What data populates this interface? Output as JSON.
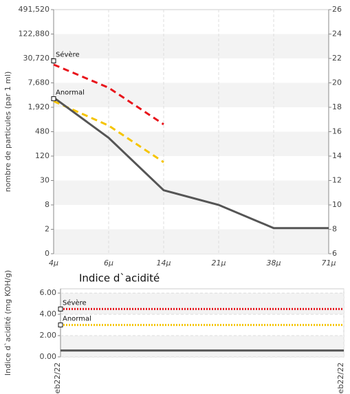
{
  "chart_data": [
    {
      "type": "line",
      "y_label": "nombre de particules (par 1 ml)",
      "categories": [
        "4μ",
        "6μ",
        "14μ",
        "21μ",
        "38μ",
        "71μ"
      ],
      "yticks": [
        0,
        2,
        8,
        30,
        120,
        480,
        {
          "value": 1920,
          "label": "1,920"
        },
        {
          "value": 7680,
          "label": "7,680"
        },
        {
          "value": 30720,
          "label": "30,720"
        },
        {
          "value": 122880,
          "label": "122,880"
        },
        {
          "value": 491520,
          "label": "491,520"
        }
      ],
      "y2lim": [
        6,
        26
      ],
      "y2ticks": [
        6,
        8,
        10,
        12,
        14,
        16,
        18,
        20,
        22,
        24,
        26
      ],
      "grid": true,
      "series": [
        {
          "color": "#e8141b",
          "dash": "dash",
          "axis": "y2",
          "values": [
            21.5,
            19.6,
            16.6,
            null,
            null,
            null
          ]
        },
        {
          "color": "#f5c400",
          "dash": "dash",
          "axis": "y2",
          "values": [
            18.5,
            16.5,
            13.5,
            null,
            null,
            null
          ]
        },
        {
          "color": "#555555",
          "dash": "solid",
          "axis": "y2",
          "values": [
            18.8,
            15.5,
            11.2,
            10.0,
            8.1,
            8.1
          ]
        }
      ],
      "annotations": [
        {
          "text": "Sévère",
          "y": 21.8
        },
        {
          "text": "Anormal",
          "y": 18.7
        }
      ]
    },
    {
      "type": "line",
      "title": "Indice d`acidité",
      "y_label": "Indice d`acidité (mg KOH/g)",
      "categories": [
        "eb22/22",
        "eb22/22"
      ],
      "ylim": [
        0,
        6.4
      ],
      "yticks": [
        {
          "value": 0,
          "label": "0.00"
        },
        {
          "value": 2,
          "label": "2.00"
        },
        {
          "value": 4,
          "label": "4.00"
        },
        {
          "value": 6,
          "label": "6.00"
        }
      ],
      "grid": true,
      "series": [
        {
          "color": "#e8141b",
          "dash": "dot",
          "values": [
            4.5,
            4.5
          ]
        },
        {
          "color": "#f5c400",
          "dash": "dot",
          "values": [
            3.0,
            3.0
          ]
        },
        {
          "color": "#555555",
          "dash": "solid",
          "values": [
            0.6,
            0.6
          ]
        }
      ],
      "annotations": [
        {
          "text": "Sévère",
          "y": 4.5
        },
        {
          "text": "Anormal",
          "y": 3.0
        }
      ]
    }
  ]
}
